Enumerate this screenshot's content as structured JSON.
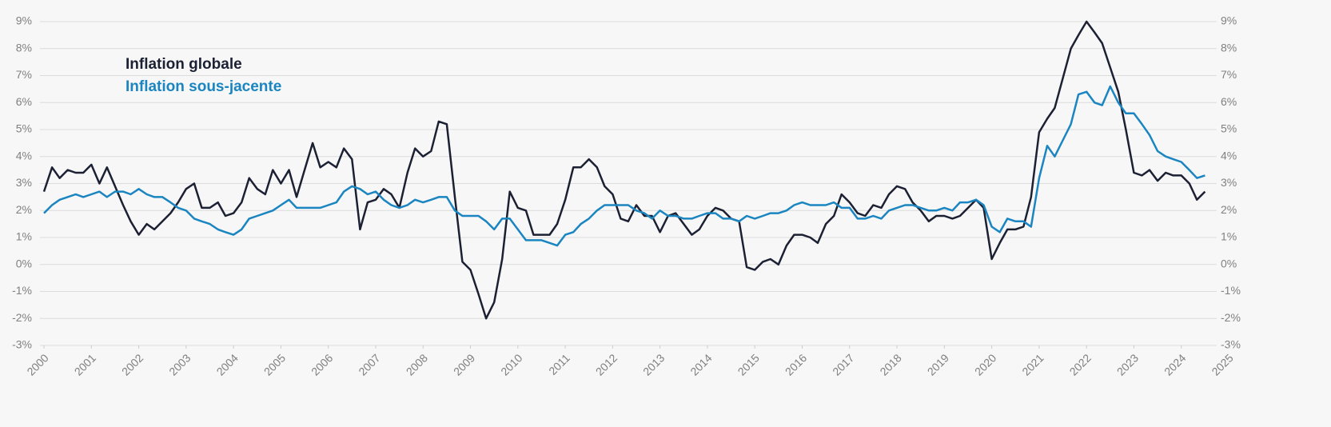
{
  "chart_data": {
    "type": "line",
    "legend": "upper left",
    "grid": true,
    "xlim": [
      2000,
      2025
    ],
    "xticks": [
      2000,
      2001,
      2002,
      2003,
      2004,
      2005,
      2006,
      2007,
      2008,
      2009,
      2010,
      2011,
      2012,
      2013,
      2014,
      2015,
      2016,
      2017,
      2018,
      2019,
      2020,
      2021,
      2022,
      2023,
      2024,
      2025
    ],
    "ylim": [
      -3,
      9
    ],
    "yticks": [
      {
        "value": -3,
        "label": "-3%"
      },
      {
        "value": -2,
        "label": "-2%"
      },
      {
        "value": -1,
        "label": "-1%"
      },
      {
        "value": 0,
        "label": "0%"
      },
      {
        "value": 1,
        "label": "1%"
      },
      {
        "value": 2,
        "label": "2%"
      },
      {
        "value": 3,
        "label": "3%"
      },
      {
        "value": 4,
        "label": "4%"
      },
      {
        "value": 5,
        "label": "5%"
      },
      {
        "value": 6,
        "label": "6%"
      },
      {
        "value": 7,
        "label": "7%"
      },
      {
        "value": 8,
        "label": "8%"
      },
      {
        "value": 9,
        "label": "9%"
      }
    ],
    "x": [
      2000,
      2000.17,
      2000.33,
      2000.5,
      2000.67,
      2000.83,
      2001,
      2001.17,
      2001.33,
      2001.5,
      2001.67,
      2001.83,
      2002,
      2002.17,
      2002.33,
      2002.5,
      2002.67,
      2002.83,
      2003,
      2003.17,
      2003.33,
      2003.5,
      2003.67,
      2003.83,
      2004,
      2004.17,
      2004.33,
      2004.5,
      2004.67,
      2004.83,
      2005,
      2005.17,
      2005.33,
      2005.5,
      2005.67,
      2005.83,
      2006,
      2006.17,
      2006.33,
      2006.5,
      2006.67,
      2006.83,
      2007,
      2007.17,
      2007.33,
      2007.5,
      2007.67,
      2007.83,
      2008,
      2008.17,
      2008.33,
      2008.5,
      2008.67,
      2008.83,
      2009,
      2009.17,
      2009.33,
      2009.5,
      2009.67,
      2009.83,
      2010,
      2010.17,
      2010.33,
      2010.5,
      2010.67,
      2010.83,
      2011,
      2011.17,
      2011.33,
      2011.5,
      2011.67,
      2011.83,
      2012,
      2012.17,
      2012.33,
      2012.5,
      2012.67,
      2012.83,
      2013,
      2013.17,
      2013.33,
      2013.5,
      2013.67,
      2013.83,
      2014,
      2014.17,
      2014.33,
      2014.5,
      2014.67,
      2014.83,
      2015,
      2015.17,
      2015.33,
      2015.5,
      2015.67,
      2015.83,
      2016,
      2016.17,
      2016.33,
      2016.5,
      2016.67,
      2016.83,
      2017,
      2017.17,
      2017.33,
      2017.5,
      2017.67,
      2017.83,
      2018,
      2018.17,
      2018.33,
      2018.5,
      2018.67,
      2018.83,
      2019,
      2019.17,
      2019.33,
      2019.5,
      2019.67,
      2019.83,
      2020,
      2020.17,
      2020.33,
      2020.5,
      2020.67,
      2020.83,
      2021,
      2021.17,
      2021.33,
      2021.5,
      2021.67,
      2021.83,
      2022,
      2022.17,
      2022.33,
      2022.5,
      2022.67,
      2022.83,
      2023,
      2023.17,
      2023.33,
      2023.5,
      2023.67,
      2023.83,
      2024,
      2024.17,
      2024.33,
      2024.5
    ],
    "series": [
      {
        "name": "Inflation globale",
        "color": "#1c2033",
        "values": [
          2.7,
          3.6,
          3.2,
          3.5,
          3.4,
          3.4,
          3.7,
          3.0,
          3.6,
          2.9,
          2.2,
          1.6,
          1.1,
          1.5,
          1.3,
          1.6,
          1.9,
          2.3,
          2.8,
          3.0,
          2.1,
          2.1,
          2.3,
          1.8,
          1.9,
          2.3,
          3.2,
          2.8,
          2.6,
          3.5,
          3.0,
          3.5,
          2.5,
          3.5,
          4.5,
          3.6,
          3.8,
          3.6,
          4.3,
          3.9,
          1.3,
          2.3,
          2.4,
          2.8,
          2.6,
          2.1,
          3.4,
          4.3,
          4.0,
          4.2,
          5.3,
          5.2,
          2.5,
          0.1,
          -0.2,
          -1.1,
          -2.0,
          -1.4,
          0.2,
          2.7,
          2.1,
          2.0,
          1.1,
          1.1,
          1.1,
          1.5,
          2.4,
          3.6,
          3.6,
          3.9,
          3.6,
          2.9,
          2.6,
          1.7,
          1.6,
          2.2,
          1.8,
          1.8,
          1.2,
          1.8,
          1.9,
          1.5,
          1.1,
          1.3,
          1.8,
          2.1,
          2.0,
          1.7,
          1.6,
          -0.1,
          -0.2,
          0.1,
          0.2,
          0.0,
          0.7,
          1.1,
          1.1,
          1.0,
          0.8,
          1.5,
          1.8,
          2.6,
          2.3,
          1.9,
          1.8,
          2.2,
          2.1,
          2.6,
          2.9,
          2.8,
          2.3,
          2.0,
          1.6,
          1.8,
          1.8,
          1.7,
          1.8,
          2.1,
          2.4,
          2.1,
          0.2,
          0.8,
          1.3,
          1.3,
          1.4,
          2.5,
          4.9,
          5.4,
          5.8,
          6.9,
          8.0,
          8.5,
          9.0,
          8.6,
          8.2,
          7.3,
          6.4,
          5.0,
          3.4,
          3.3,
          3.5,
          3.1,
          3.4,
          3.3,
          3.3,
          3.0,
          2.4,
          2.7
        ]
      },
      {
        "name": "Inflation sous-jacente",
        "color": "#1a85c0",
        "values": [
          1.9,
          2.2,
          2.4,
          2.5,
          2.6,
          2.5,
          2.6,
          2.7,
          2.5,
          2.7,
          2.7,
          2.6,
          2.8,
          2.6,
          2.5,
          2.5,
          2.3,
          2.1,
          2.0,
          1.7,
          1.6,
          1.5,
          1.3,
          1.2,
          1.1,
          1.3,
          1.7,
          1.8,
          1.9,
          2.0,
          2.2,
          2.4,
          2.1,
          2.1,
          2.1,
          2.1,
          2.2,
          2.3,
          2.7,
          2.9,
          2.8,
          2.6,
          2.7,
          2.4,
          2.2,
          2.1,
          2.2,
          2.4,
          2.3,
          2.4,
          2.5,
          2.5,
          2.0,
          1.8,
          1.8,
          1.8,
          1.6,
          1.3,
          1.7,
          1.7,
          1.3,
          0.9,
          0.9,
          0.9,
          0.8,
          0.7,
          1.1,
          1.2,
          1.5,
          1.7,
          2.0,
          2.2,
          2.2,
          2.2,
          2.2,
          2.0,
          1.9,
          1.7,
          2.0,
          1.8,
          1.8,
          1.7,
          1.7,
          1.8,
          1.9,
          1.9,
          1.7,
          1.7,
          1.6,
          1.8,
          1.7,
          1.8,
          1.9,
          1.9,
          2.0,
          2.2,
          2.3,
          2.2,
          2.2,
          2.2,
          2.3,
          2.1,
          2.1,
          1.7,
          1.7,
          1.8,
          1.7,
          2.0,
          2.1,
          2.2,
          2.2,
          2.1,
          2.0,
          2.0,
          2.1,
          2.0,
          2.3,
          2.3,
          2.4,
          2.2,
          1.4,
          1.2,
          1.7,
          1.6,
          1.6,
          1.4,
          3.2,
          4.4,
          4.0,
          4.6,
          5.2,
          6.3,
          6.4,
          6.0,
          5.9,
          6.6,
          6.0,
          5.6,
          5.6,
          5.2,
          4.8,
          4.2,
          4.0,
          3.9,
          3.8,
          3.5,
          3.2,
          3.3
        ]
      }
    ]
  }
}
